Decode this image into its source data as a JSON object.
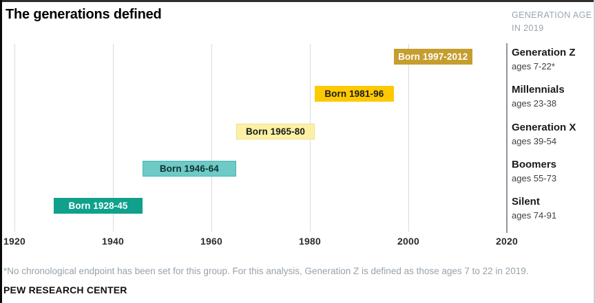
{
  "title": "The generations defined",
  "legend_note": {
    "line1": "GENERATION AGE",
    "line2": "IN 2019"
  },
  "footnote": "*No chronological endpoint has been set for this group. For this analysis, Generation Z is defined as those ages 7 to 22 in 2019.",
  "source": "PEW RESEARCH CENTER",
  "chart_data": {
    "type": "bar",
    "orientation": "horizontal-timeline",
    "x_axis": {
      "ticks": [
        1920,
        1940,
        1960,
        1980,
        2000,
        2020
      ],
      "range": [
        1920,
        2020
      ],
      "gridlines": true,
      "separator_year": 2020
    },
    "series": [
      {
        "name": "Generation Z",
        "ages": "ages 7-22*",
        "bar_label": "Born 1997-2012",
        "start": 1997,
        "end": 2012,
        "color": "#c69e2f",
        "text_color": "#ffffff"
      },
      {
        "name": "Millennials",
        "ages": "ages 23-38",
        "bar_label": "Born 1981-96",
        "start": 1981,
        "end": 1996,
        "color": "#fec900",
        "text_color": "#1a1a1a"
      },
      {
        "name": "Generation X",
        "ages": "ages 39-54",
        "bar_label": "Born 1965-80",
        "start": 1965,
        "end": 1980,
        "color": "#fcf0a4",
        "text_color": "#1a1a1a",
        "border": "#ecdf96"
      },
      {
        "name": "Boomers",
        "ages": "ages 55-73",
        "bar_label": "Born 1946-64",
        "start": 1946,
        "end": 1964,
        "color": "#6ecac6",
        "text_color": "#10302e",
        "border": "#44b7b2"
      },
      {
        "name": "Silent",
        "ages": "ages 74-91",
        "bar_label": "Born 1928-45",
        "start": 1928,
        "end": 1945,
        "color": "#0fa18c",
        "text_color": "#ffffff"
      }
    ]
  }
}
